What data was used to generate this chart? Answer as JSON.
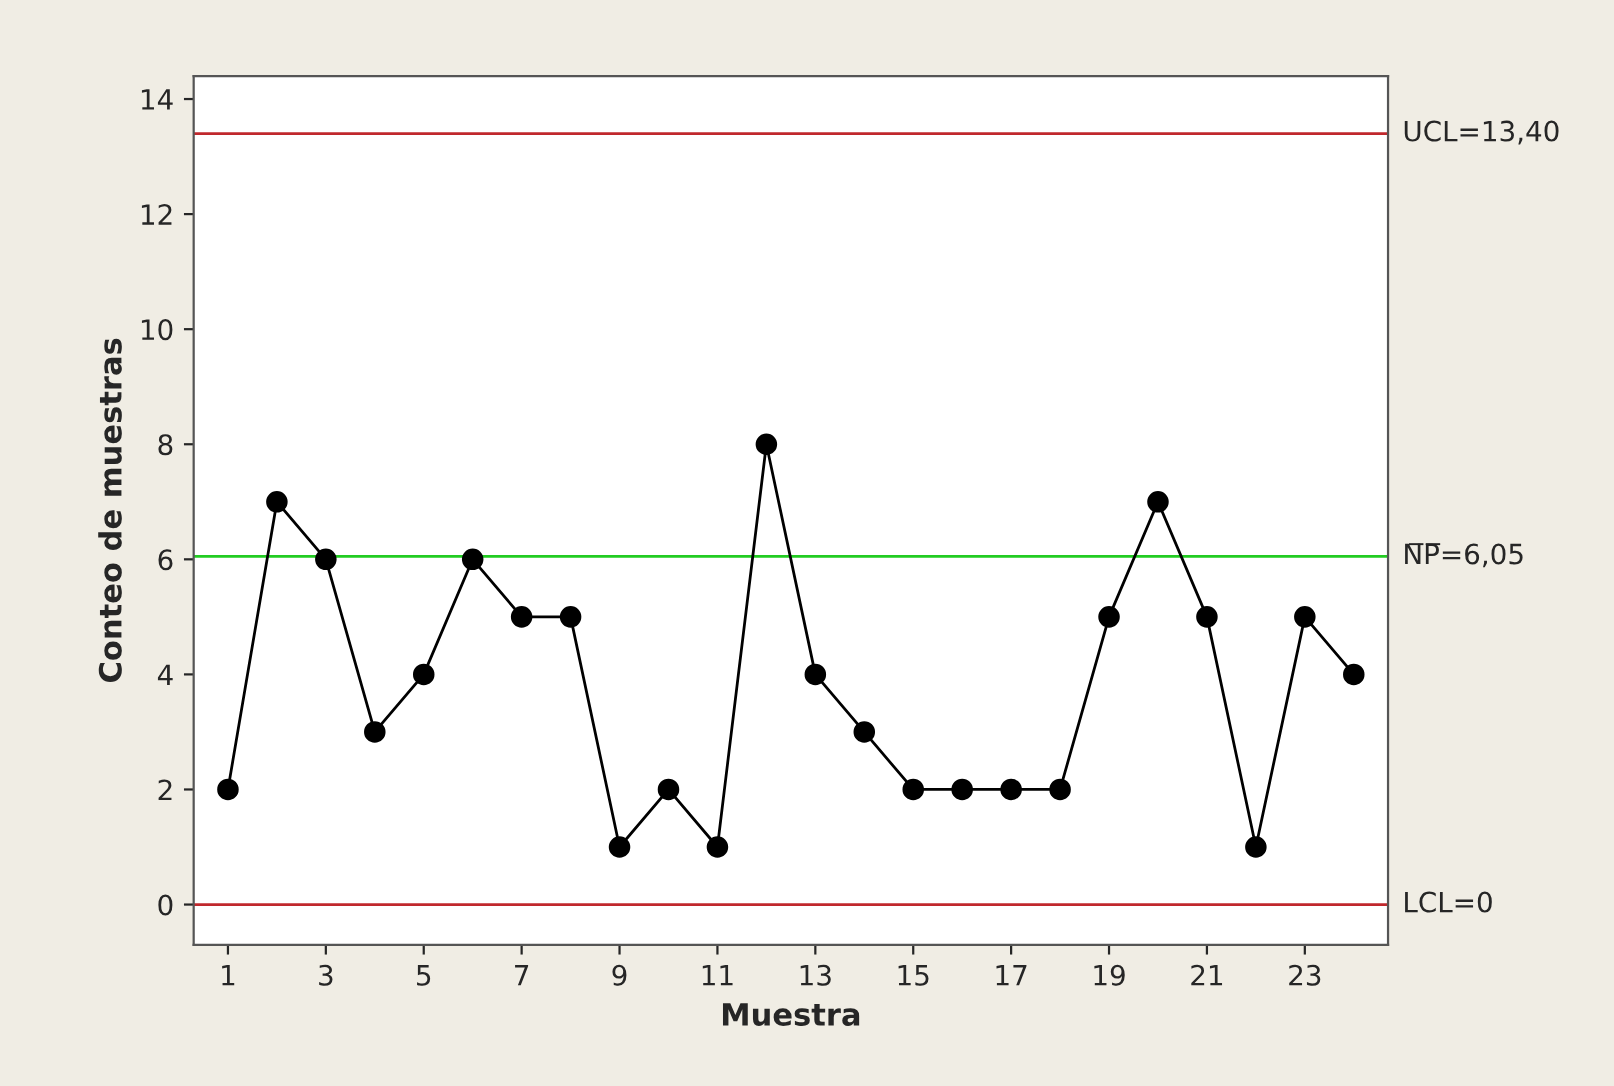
{
  "chart_data": {
    "type": "line",
    "xlabel": "Muestra",
    "ylabel": "Conteo de muestras",
    "x": [
      1,
      2,
      3,
      4,
      5,
      6,
      7,
      8,
      9,
      10,
      11,
      12,
      13,
      14,
      15,
      16,
      17,
      18,
      19,
      20,
      21,
      22,
      23,
      24
    ],
    "series": [
      {
        "color": "#000000",
        "values": [
          2,
          7,
          6,
          3,
          4,
          6,
          5,
          5,
          1,
          2,
          1,
          8,
          4,
          3,
          2,
          2,
          2,
          2,
          5,
          7,
          5,
          1,
          5,
          4
        ]
      }
    ],
    "xlim": [
      0.3,
      24.7
    ],
    "xticks": [
      1,
      3,
      5,
      7,
      9,
      11,
      13,
      15,
      17,
      19,
      21,
      23
    ],
    "ylim": [
      -0.7,
      14.4
    ],
    "yticks": [
      0,
      2,
      4,
      6,
      8,
      10,
      12,
      14
    ],
    "ref_lines": [
      {
        "axis": "y",
        "value": 13.4,
        "label": "UCL=13,40",
        "color": "#c0282d"
      },
      {
        "axis": "y",
        "value": 6.05,
        "label": "N̅P̅=6,05",
        "color": "#22cc22"
      },
      {
        "axis": "y",
        "value": 0,
        "label": "LCL=0",
        "color": "#c0282d"
      }
    ],
    "marker": "circle",
    "line_style": "solid",
    "grid": false,
    "legend": false
  }
}
